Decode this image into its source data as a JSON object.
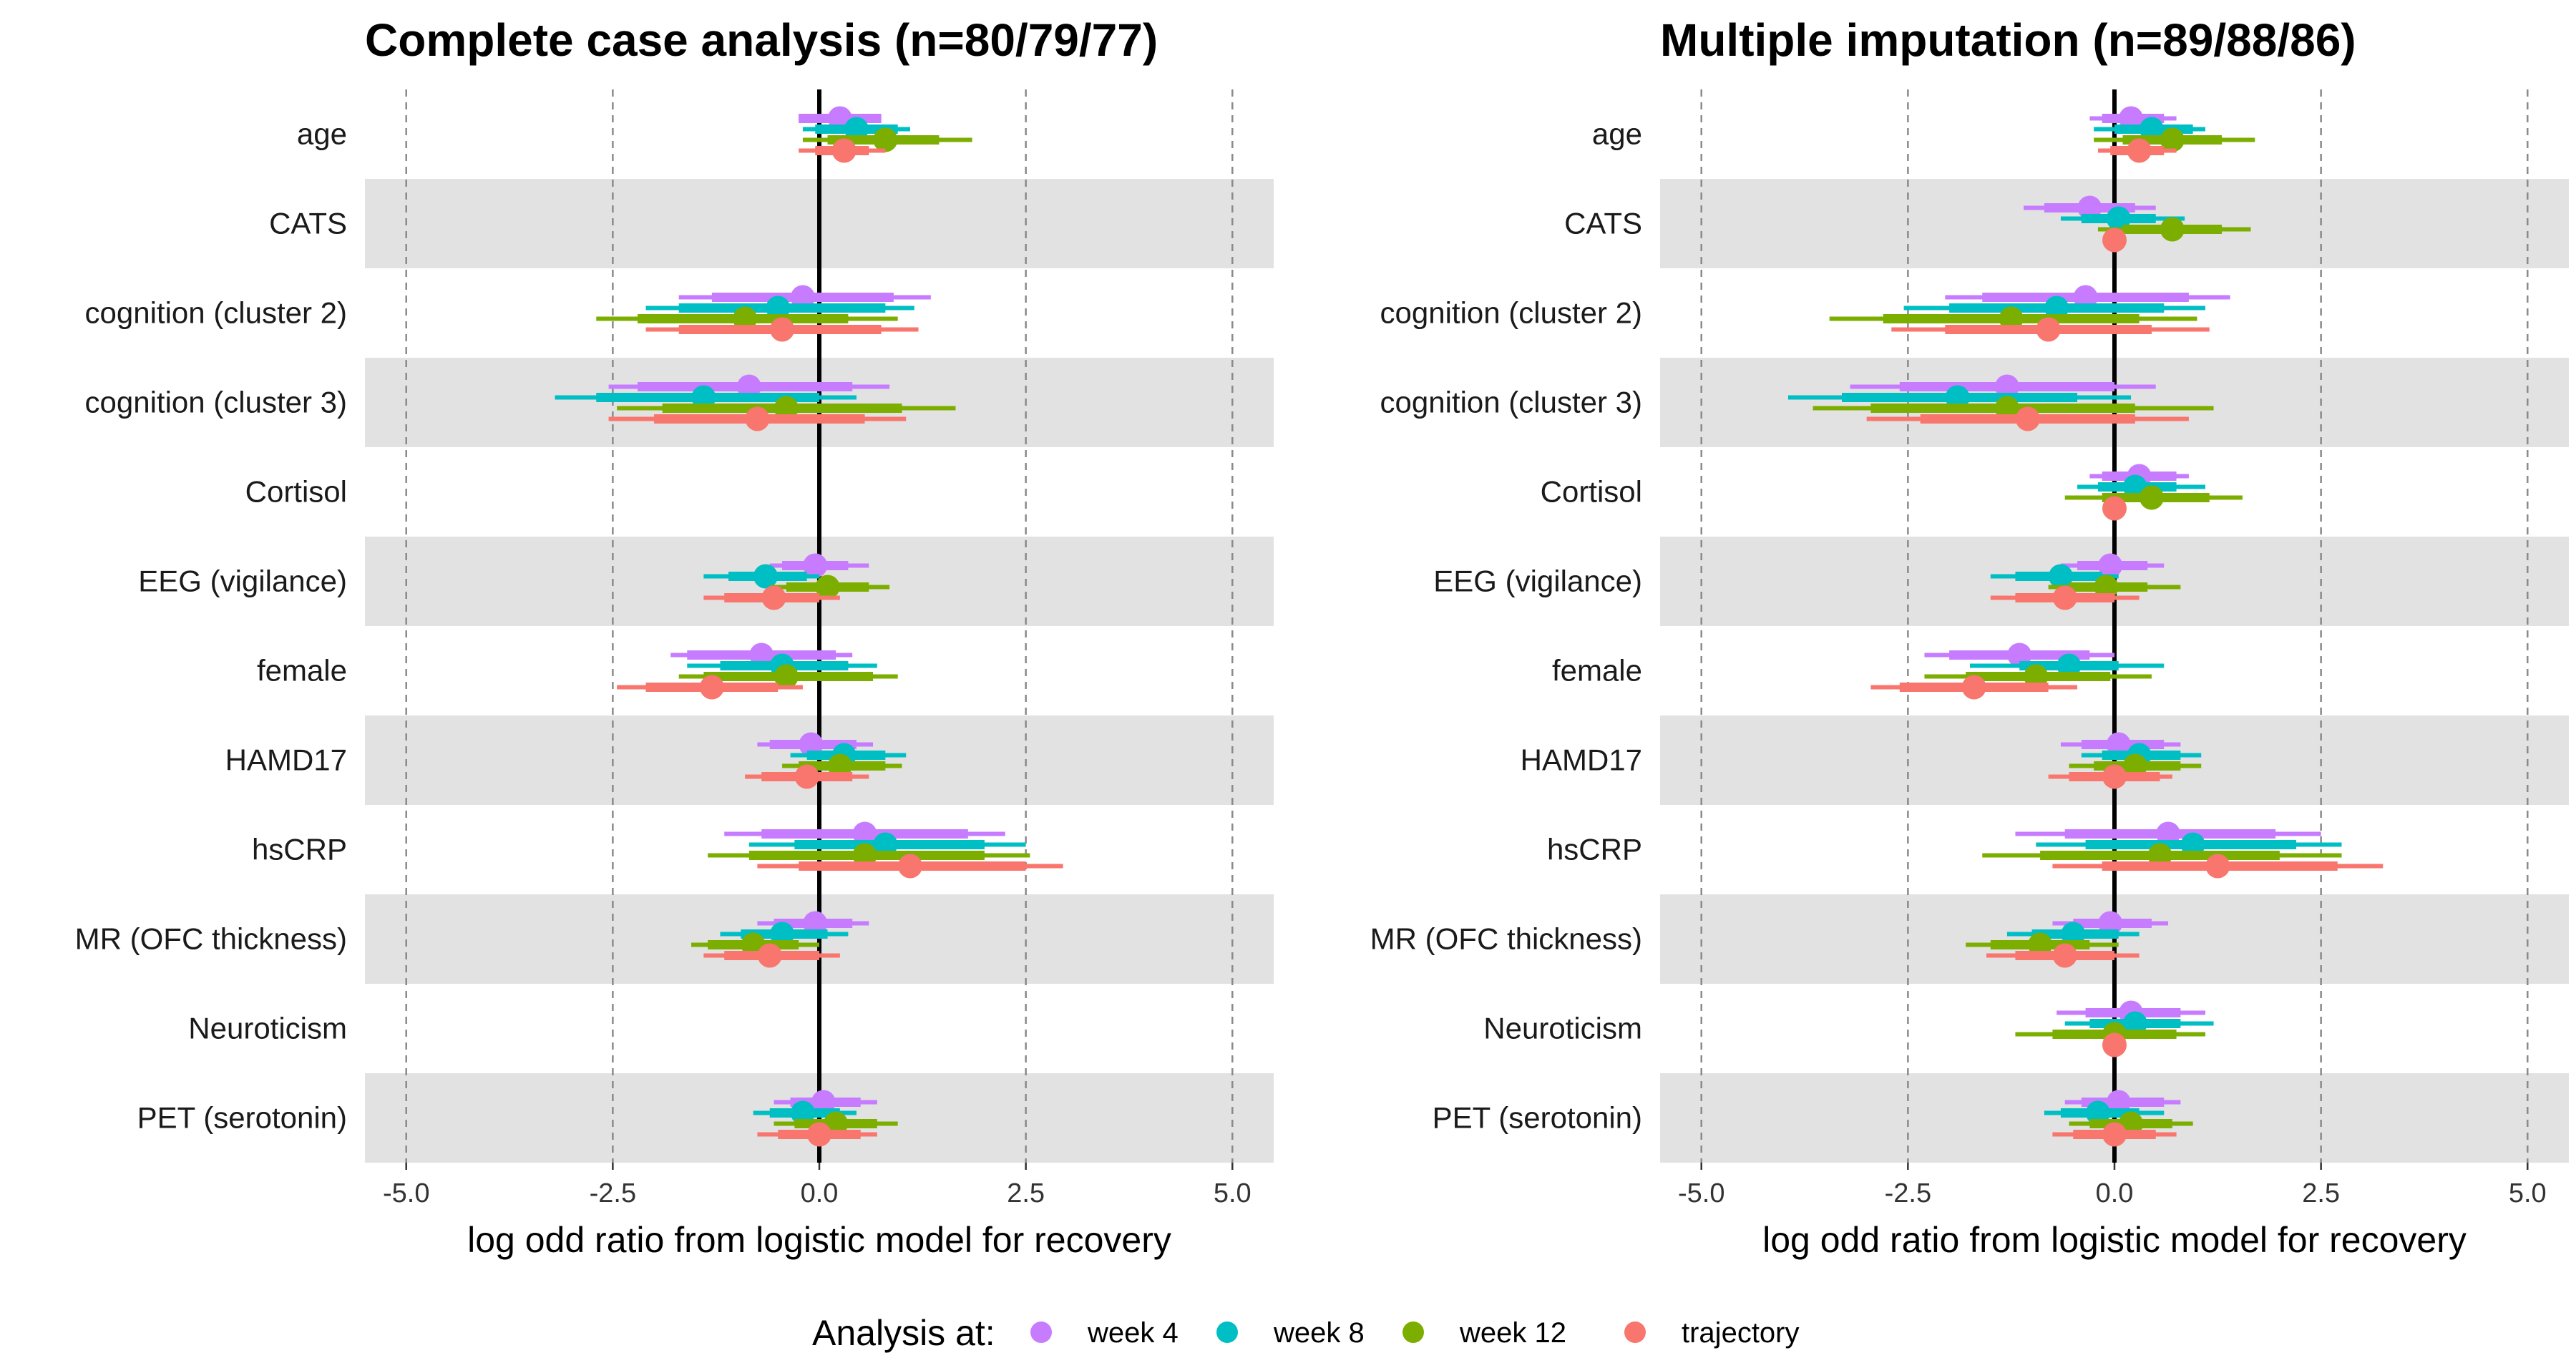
{
  "legend": {
    "title": "Analysis at:",
    "items": [
      {
        "label": "week 4",
        "color": "#C77CFF"
      },
      {
        "label": "week 8",
        "color": "#00BFC4"
      },
      {
        "label": "week 12",
        "color": "#7CAE00"
      },
      {
        "label": "trajectory",
        "color": "#F8766D"
      }
    ]
  },
  "chart_data": [
    {
      "type": "forest",
      "title": "Complete case analysis (n=80/79/77)",
      "xlabel": "log odd ratio from logistic model for recovery",
      "xlim": [
        -5.5,
        5.5
      ],
      "xticks": [
        "-5.0",
        "-2.5",
        "0.0",
        "2.5",
        "5.0"
      ],
      "vline": 0,
      "categories": [
        "age",
        "CATS",
        "cognition (cluster 2)",
        "cognition (cluster 3)",
        "Cortisol",
        "EEG (vigilance)",
        "female",
        "HAMD17",
        "hsCRP",
        "MR (OFC thickness)",
        "Neuroticism",
        "PET (serotonin)"
      ],
      "series": [
        {
          "name": "week 4",
          "estimates": [
            {
              "est": 0.25,
              "lo": -0.25,
              "hi": 0.75,
              "lo95": -0.25,
              "hi95": 0.75
            },
            null,
            {
              "est": -0.2,
              "lo": -1.3,
              "hi": 0.9,
              "lo95": -1.7,
              "hi95": 1.35
            },
            {
              "est": -0.85,
              "lo": -2.2,
              "hi": 0.4,
              "lo95": -2.55,
              "hi95": 0.85
            },
            null,
            {
              "est": -0.05,
              "lo": -0.45,
              "hi": 0.35,
              "lo95": -0.6,
              "hi95": 0.6
            },
            {
              "est": -0.7,
              "lo": -1.6,
              "hi": 0.2,
              "lo95": -1.8,
              "hi95": 0.4
            },
            {
              "est": -0.1,
              "lo": -0.6,
              "hi": 0.45,
              "lo95": -0.75,
              "hi95": 0.65
            },
            {
              "est": 0.55,
              "lo": -0.7,
              "hi": 1.8,
              "lo95": -1.15,
              "hi95": 2.25
            },
            {
              "est": -0.05,
              "lo": -0.55,
              "hi": 0.4,
              "lo95": -0.75,
              "hi95": 0.6
            },
            null,
            {
              "est": 0.05,
              "lo": -0.35,
              "hi": 0.5,
              "lo95": -0.55,
              "hi95": 0.7
            }
          ]
        },
        {
          "name": "week 8",
          "estimates": [
            {
              "est": 0.45,
              "lo": -0.05,
              "hi": 0.95,
              "lo95": -0.2,
              "hi95": 1.1
            },
            null,
            {
              "est": -0.5,
              "lo": -1.7,
              "hi": 0.8,
              "lo95": -2.1,
              "hi95": 1.15
            },
            {
              "est": -1.4,
              "lo": -2.7,
              "hi": 0.0,
              "lo95": -3.2,
              "hi95": 0.45
            },
            null,
            {
              "est": -0.65,
              "lo": -1.1,
              "hi": -0.15,
              "lo95": -1.4,
              "hi95": 0.0
            },
            {
              "est": -0.45,
              "lo": -1.2,
              "hi": 0.35,
              "lo95": -1.6,
              "hi95": 0.7
            },
            {
              "est": 0.3,
              "lo": -0.15,
              "hi": 0.8,
              "lo95": -0.35,
              "hi95": 1.05
            },
            {
              "est": 0.8,
              "lo": -0.3,
              "hi": 2.0,
              "lo95": -0.85,
              "hi95": 2.5
            },
            {
              "est": -0.45,
              "lo": -0.95,
              "hi": 0.1,
              "lo95": -1.2,
              "hi95": 0.35
            },
            null,
            {
              "est": -0.2,
              "lo": -0.6,
              "hi": 0.25,
              "lo95": -0.8,
              "hi95": 0.45
            }
          ]
        },
        {
          "name": "week 12",
          "estimates": [
            {
              "est": 0.8,
              "lo": 0.1,
              "hi": 1.45,
              "lo95": -0.2,
              "hi95": 1.85
            },
            null,
            {
              "est": -0.9,
              "lo": -2.2,
              "hi": 0.35,
              "lo95": -2.7,
              "hi95": 0.95
            },
            {
              "est": -0.4,
              "lo": -1.9,
              "hi": 1.0,
              "lo95": -2.45,
              "hi95": 1.65
            },
            null,
            {
              "est": 0.1,
              "lo": -0.4,
              "hi": 0.6,
              "lo95": -0.6,
              "hi95": 0.85
            },
            {
              "est": -0.4,
              "lo": -1.4,
              "hi": 0.65,
              "lo95": -1.7,
              "hi95": 0.95
            },
            {
              "est": 0.25,
              "lo": -0.25,
              "hi": 0.8,
              "lo95": -0.45,
              "hi95": 1.0
            },
            {
              "est": 0.55,
              "lo": -0.85,
              "hi": 2.0,
              "lo95": -1.35,
              "hi95": 2.55
            },
            {
              "est": -0.8,
              "lo": -1.35,
              "hi": -0.25,
              "lo95": -1.55,
              "hi95": 0.0
            },
            null,
            {
              "est": 0.2,
              "lo": -0.3,
              "hi": 0.7,
              "lo95": -0.55,
              "hi95": 0.95
            }
          ]
        },
        {
          "name": "trajectory",
          "estimates": [
            {
              "est": 0.3,
              "lo": -0.05,
              "hi": 0.6,
              "lo95": -0.25,
              "hi95": 0.8
            },
            null,
            {
              "est": -0.45,
              "lo": -1.7,
              "hi": 0.75,
              "lo95": -2.1,
              "hi95": 1.2
            },
            {
              "est": -0.75,
              "lo": -2.0,
              "hi": 0.55,
              "lo95": -2.55,
              "hi95": 1.05
            },
            null,
            {
              "est": -0.55,
              "lo": -1.15,
              "hi": 0.0,
              "lo95": -1.4,
              "hi95": 0.25
            },
            {
              "est": -1.3,
              "lo": -2.1,
              "hi": -0.5,
              "lo95": -2.45,
              "hi95": -0.2
            },
            {
              "est": -0.15,
              "lo": -0.7,
              "hi": 0.4,
              "lo95": -0.9,
              "hi95": 0.6
            },
            {
              "est": 1.1,
              "lo": -0.25,
              "hi": 2.5,
              "lo95": -0.75,
              "hi95": 2.95
            },
            {
              "est": -0.6,
              "lo": -1.15,
              "hi": 0.0,
              "lo95": -1.4,
              "hi95": 0.25
            },
            null,
            {
              "est": 0.0,
              "lo": -0.5,
              "hi": 0.5,
              "lo95": -0.75,
              "hi95": 0.7
            }
          ]
        }
      ]
    },
    {
      "type": "forest",
      "title": "Multiple imputation (n=89/88/86)",
      "xlabel": "log odd ratio from logistic model for recovery",
      "xlim": [
        -5.5,
        5.5
      ],
      "xticks": [
        "-5.0",
        "-2.5",
        "0.0",
        "2.5",
        "5.0"
      ],
      "vline": 0,
      "categories": [
        "age",
        "CATS",
        "cognition (cluster 2)",
        "cognition (cluster 3)",
        "Cortisol",
        "EEG (vigilance)",
        "female",
        "HAMD17",
        "hsCRP",
        "MR (OFC thickness)",
        "Neuroticism",
        "PET (serotonin)"
      ],
      "series": [
        {
          "name": "week 4",
          "estimates": [
            {
              "est": 0.2,
              "lo": -0.15,
              "hi": 0.6,
              "lo95": -0.3,
              "hi95": 0.75
            },
            {
              "est": -0.3,
              "lo": -0.85,
              "hi": 0.25,
              "lo95": -1.1,
              "hi95": 0.5
            },
            {
              "est": -0.35,
              "lo": -1.6,
              "hi": 0.9,
              "lo95": -2.05,
              "hi95": 1.4
            },
            {
              "est": -1.3,
              "lo": -2.6,
              "hi": 0.0,
              "lo95": -3.2,
              "hi95": 0.5
            },
            {
              "est": 0.3,
              "lo": -0.15,
              "hi": 0.75,
              "lo95": -0.3,
              "hi95": 0.9
            },
            {
              "est": -0.05,
              "lo": -0.45,
              "hi": 0.4,
              "lo95": -0.65,
              "hi95": 0.6
            },
            {
              "est": -1.15,
              "lo": -2.0,
              "hi": -0.3,
              "lo95": -2.3,
              "hi95": 0.0
            },
            {
              "est": 0.05,
              "lo": -0.4,
              "hi": 0.6,
              "lo95": -0.65,
              "hi95": 0.8
            },
            {
              "est": 0.65,
              "lo": -0.6,
              "hi": 1.95,
              "lo95": -1.2,
              "hi95": 2.5
            },
            {
              "est": -0.05,
              "lo": -0.5,
              "hi": 0.45,
              "lo95": -0.75,
              "hi95": 0.65
            },
            {
              "est": 0.2,
              "lo": -0.35,
              "hi": 0.8,
              "lo95": -0.7,
              "hi95": 1.1
            },
            {
              "est": 0.05,
              "lo": -0.4,
              "hi": 0.6,
              "lo95": -0.6,
              "hi95": 0.8
            }
          ]
        },
        {
          "name": "week 8",
          "estimates": [
            {
              "est": 0.45,
              "lo": 0.0,
              "hi": 0.95,
              "lo95": -0.25,
              "hi95": 1.1
            },
            {
              "est": 0.05,
              "lo": -0.4,
              "hi": 0.5,
              "lo95": -0.65,
              "hi95": 0.85
            },
            {
              "est": -0.7,
              "lo": -2.0,
              "hi": 0.6,
              "lo95": -2.55,
              "hi95": 1.1
            },
            {
              "est": -1.9,
              "lo": -3.3,
              "hi": -0.45,
              "lo95": -3.95,
              "hi95": 0.2
            },
            {
              "est": 0.25,
              "lo": -0.2,
              "hi": 0.75,
              "lo95": -0.45,
              "hi95": 1.1
            },
            {
              "est": -0.65,
              "lo": -1.2,
              "hi": -0.15,
              "lo95": -1.5,
              "hi95": 0.05
            },
            {
              "est": -0.55,
              "lo": -1.15,
              "hi": 0.05,
              "lo95": -1.75,
              "hi95": 0.6
            },
            {
              "est": 0.3,
              "lo": -0.15,
              "hi": 0.8,
              "lo95": -0.4,
              "hi95": 1.05
            },
            {
              "est": 0.95,
              "lo": -0.35,
              "hi": 2.2,
              "lo95": -0.95,
              "hi95": 2.75
            },
            {
              "est": -0.5,
              "lo": -1.0,
              "hi": 0.05,
              "lo95": -1.3,
              "hi95": 0.3
            },
            {
              "est": 0.25,
              "lo": -0.3,
              "hi": 0.8,
              "lo95": -0.6,
              "hi95": 1.2
            },
            {
              "est": -0.2,
              "lo": -0.65,
              "hi": 0.3,
              "lo95": -0.85,
              "hi95": 0.6
            }
          ]
        },
        {
          "name": "week 12",
          "estimates": [
            {
              "est": 0.7,
              "lo": 0.1,
              "hi": 1.3,
              "lo95": -0.25,
              "hi95": 1.7
            },
            {
              "est": 0.7,
              "lo": 0.1,
              "hi": 1.3,
              "lo95": -0.2,
              "hi95": 1.65
            },
            {
              "est": -1.25,
              "lo": -2.8,
              "hi": 0.3,
              "lo95": -3.45,
              "hi95": 1.0
            },
            {
              "est": -1.3,
              "lo": -2.95,
              "hi": 0.25,
              "lo95": -3.65,
              "hi95": 1.2
            },
            {
              "est": 0.45,
              "lo": -0.15,
              "hi": 1.15,
              "lo95": -0.6,
              "hi95": 1.55
            },
            {
              "est": -0.1,
              "lo": -0.55,
              "hi": 0.4,
              "lo95": -0.8,
              "hi95": 0.8
            },
            {
              "est": -0.95,
              "lo": -1.8,
              "hi": -0.05,
              "lo95": -2.3,
              "hi95": 0.45
            },
            {
              "est": 0.25,
              "lo": -0.25,
              "hi": 0.8,
              "lo95": -0.55,
              "hi95": 1.05
            },
            {
              "est": 0.55,
              "lo": -0.9,
              "hi": 2.0,
              "lo95": -1.6,
              "hi95": 2.75
            },
            {
              "est": -0.9,
              "lo": -1.5,
              "hi": -0.3,
              "lo95": -1.8,
              "hi95": 0.05
            },
            {
              "est": 0.0,
              "lo": -0.75,
              "hi": 0.75,
              "lo95": -1.2,
              "hi95": 1.1
            },
            {
              "est": 0.2,
              "lo": -0.3,
              "hi": 0.7,
              "lo95": -0.55,
              "hi95": 0.95
            }
          ]
        },
        {
          "name": "trajectory",
          "estimates": [
            {
              "est": 0.3,
              "lo": -0.05,
              "hi": 0.6,
              "lo95": -0.2,
              "hi95": 0.75
            },
            {
              "est": 0.0,
              "lo": 0.0,
              "hi": 0.0,
              "lo95": 0.0,
              "hi95": 0.0
            },
            {
              "est": -0.8,
              "lo": -2.05,
              "hi": 0.45,
              "lo95": -2.7,
              "hi95": 1.15
            },
            {
              "est": -1.05,
              "lo": -2.35,
              "hi": 0.25,
              "lo95": -3.0,
              "hi95": 0.9
            },
            {
              "est": 0.0,
              "lo": 0.0,
              "hi": 0.0,
              "lo95": 0.0,
              "hi95": 0.0
            },
            {
              "est": -0.6,
              "lo": -1.2,
              "hi": 0.0,
              "lo95": -1.5,
              "hi95": 0.3
            },
            {
              "est": -1.7,
              "lo": -2.6,
              "hi": -0.8,
              "lo95": -2.95,
              "hi95": -0.45
            },
            {
              "est": 0.0,
              "lo": -0.55,
              "hi": 0.55,
              "lo95": -0.8,
              "hi95": 0.7
            },
            {
              "est": 1.25,
              "lo": -0.15,
              "hi": 2.7,
              "lo95": -0.75,
              "hi95": 3.25
            },
            {
              "est": -0.6,
              "lo": -1.2,
              "hi": 0.0,
              "lo95": -1.55,
              "hi95": 0.3
            },
            {
              "est": 0.0,
              "lo": 0.0,
              "hi": 0.0,
              "lo95": 0.0,
              "hi95": 0.0
            },
            {
              "est": 0.0,
              "lo": -0.5,
              "hi": 0.5,
              "lo95": -0.75,
              "hi95": 0.75
            }
          ]
        }
      ]
    }
  ]
}
